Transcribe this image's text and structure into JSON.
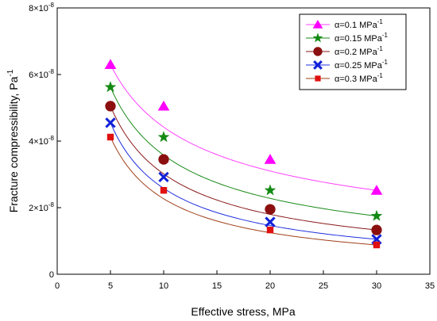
{
  "chart_data": {
    "type": "scatter",
    "xlabel": "Effective stress, MPa",
    "ylabel": "Fracture compressibility, Pa⁻¹",
    "xlim": [
      0,
      35
    ],
    "ylim": [
      0,
      8e-08
    ],
    "x_ticks": [
      "0",
      "5",
      "10",
      "15",
      "20",
      "25",
      "30",
      "35"
    ],
    "y_ticks": [
      {
        "mantissa": "0",
        "exp": ""
      },
      {
        "mantissa": "2×10",
        "exp": "-8"
      },
      {
        "mantissa": "4×10",
        "exp": "-8"
      },
      {
        "mantissa": "6×10",
        "exp": "-8"
      },
      {
        "mantissa": "8×10",
        "exp": "-8"
      }
    ],
    "grid": false,
    "legend_position": "top-right",
    "x": [
      5,
      10,
      20,
      30
    ],
    "series": [
      {
        "name": "α=0.1 MPa",
        "name_sup": "-1",
        "marker": "triangle",
        "color": "#ff00ff",
        "line_color": "#ff40ff",
        "values": [
          6.3e-08,
          5.05e-08,
          3.45e-08,
          2.52e-08
        ]
      },
      {
        "name": "α=0.15 MPa",
        "name_sup": "-1",
        "marker": "star",
        "color": "#148a14",
        "line_color": "#1a8a1a",
        "values": [
          5.62e-08,
          4.12e-08,
          2.52e-08,
          1.75e-08
        ]
      },
      {
        "name": "α=0.2 MPa",
        "name_sup": "-1",
        "marker": "circle",
        "color": "#8b0f0f",
        "line_color": "#8b1a1a",
        "values": [
          5.05e-08,
          3.45e-08,
          1.95e-08,
          1.33e-08
        ]
      },
      {
        "name": "α=0.25 MPa",
        "name_sup": "-1",
        "marker": "x",
        "color": "#1020d8",
        "line_color": "#2030e0",
        "values": [
          4.55e-08,
          2.92e-08,
          1.57e-08,
          1.05e-08
        ]
      },
      {
        "name": "α=0.3 MPa",
        "name_sup": "-1",
        "marker": "square",
        "color": "#e01010",
        "line_color": "#a0401a",
        "values": [
          4.12e-08,
          2.52e-08,
          1.33e-08,
          8.8e-09
        ]
      }
    ]
  }
}
